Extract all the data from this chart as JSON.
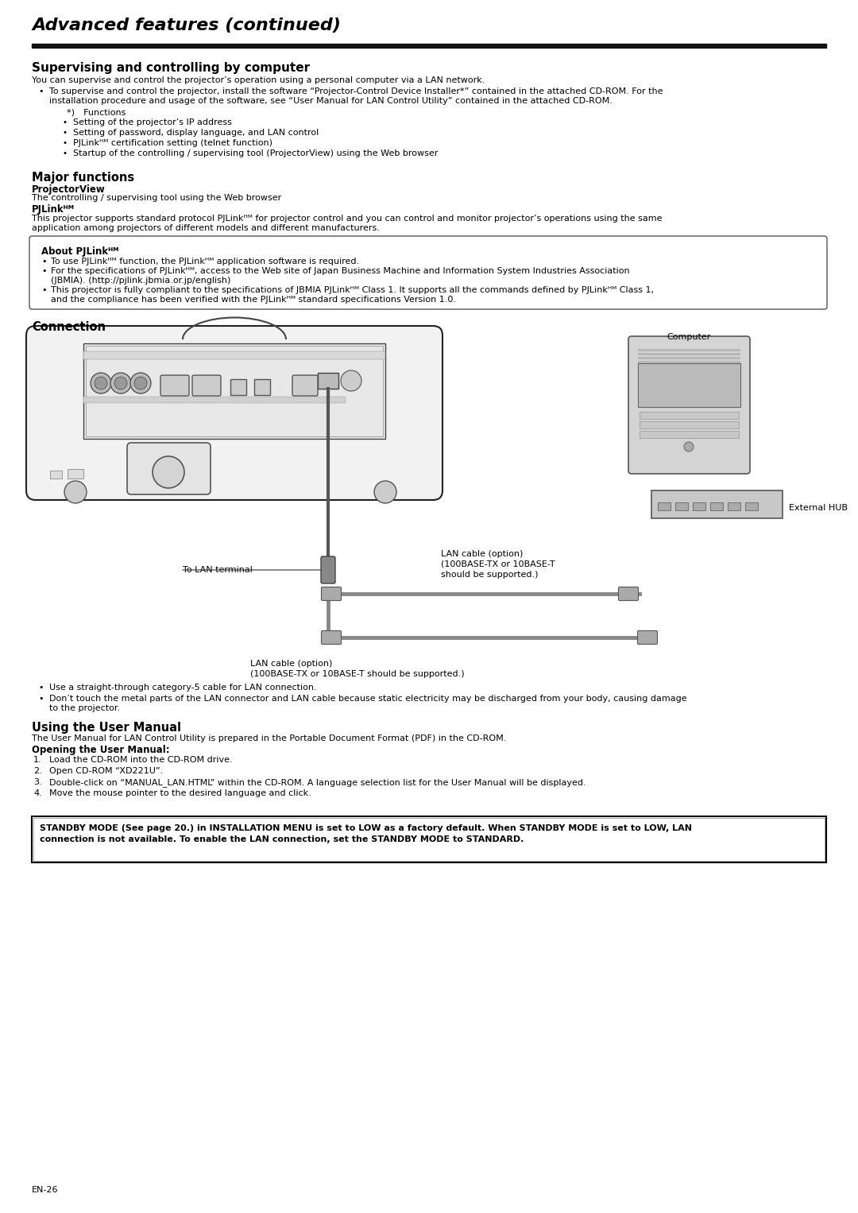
{
  "bg_color": "#ffffff",
  "text_color": "#000000",
  "page_number": "EN-26",
  "title": "Advanced features (continued)",
  "section1_heading": "Supervising and controlling by computer",
  "section1_intro": "You can supervise and control the projector’s operation using a personal computer via a LAN network.",
  "bullet1": "To supervise and control the projector, install the software “Projector-Control Device Installer*” contained in the attached CD-ROM. For the",
  "bullet1b": "installation procedure and usage of the software, see “User Manual for LAN Control Utility” contained in the attached CD-ROM.",
  "sub_bullets": [
    "*) Functions",
    "Setting of the projector’s IP address",
    "Setting of password, display language, and LAN control",
    "PJLinkᴴᴹ certification setting (telnet function)",
    "Startup of the controlling / supervising tool (ProjectorView) using the Web browser"
  ],
  "major_functions_heading": "Major functions",
  "projectorview_label": "ProjectorView",
  "projectorview_desc": "The controlling / supervising tool using the Web browser",
  "pjlink_label": "PJLinkᴴᴹ",
  "pjlink_desc": "This projector supports standard protocol PJLinkᴴᴹ for projector control and you can control and monitor projector’s operations using the same",
  "pjlink_desc2": "application among projectors of different models and different manufacturers.",
  "box_heading": "About PJLinkᴴᴹ",
  "box_b1": "To use PJLinkᴴᴹ function, the PJLinkᴴᴹ application software is required.",
  "box_b2a": "For the specifications of PJLinkᴴᴹ, access to the Web site of Japan Business Machine and Information System Industries Association",
  "box_b2b": "(JBMIA). (http://pjlink.jbmia.or.jp/english)",
  "box_b3a": "This projector is fully compliant to the specifications of JBMIA PJLinkᴴᴹ Class 1. It supports all the commands defined by PJLinkᴴᴹ Class 1,",
  "box_b3b": "and the compliance has been verified with the PJLinkᴴᴹ standard specifications Version 1.0.",
  "connection_heading": "Connection",
  "lan_cable_label1a": "LAN cable (option)",
  "lan_cable_label1b": "(100BASE-TX or 10BASE-T",
  "lan_cable_label1c": "should be supported.)",
  "to_lan_label": "To LAN terminal",
  "computer_label": "Computer",
  "external_hub_label": "External HUB",
  "lan_cable_label2a": "LAN cable (option)",
  "lan_cable_label2b": "(100BASE-TX or 10BASE-T should be supported.)",
  "bullet_lan1": "Use a straight-through category-5 cable for LAN connection.",
  "bullet_lan2a": "Don’t touch the metal parts of the LAN connector and LAN cable because static electricity may be discharged from your body, causing damage",
  "bullet_lan2b": "to the projector.",
  "user_manual_heading": "Using the User Manual",
  "user_manual_desc": "The User Manual for LAN Control Utility is prepared in the Portable Document Format (PDF) in the CD-ROM.",
  "opening_label": "Opening the User Manual:",
  "step1": "Load the CD-ROM into the CD-ROM drive.",
  "step2": "Open CD-ROM “XD221U”.",
  "step3": "Double-click on “MANUAL_LAN.HTML” within the CD-ROM. A language selection list for the User Manual will be displayed.",
  "step4": "Move the mouse pointer to the desired language and click.",
  "warning_line1": "STANDBY MODE (See page 20.) in INSTALLATION MENU is set to LOW as a factory default. When STANDBY MODE is set to LOW, LAN",
  "warning_line2": "connection is not available. To enable the LAN connection, set the STANDBY MODE to STANDARD."
}
